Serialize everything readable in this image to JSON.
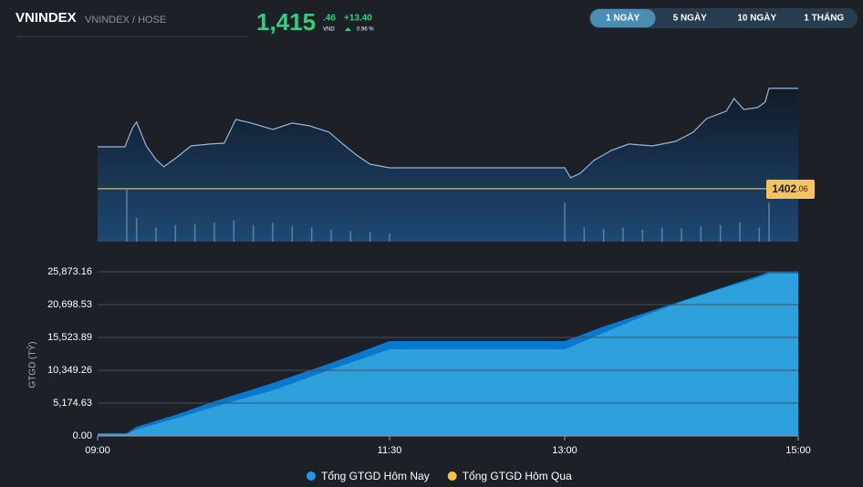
{
  "header": {
    "symbol": "VNINDEX",
    "exchange": "VNINDEX / HOSE",
    "price_int": "1,415",
    "price_dec": ".46",
    "currency": "VND",
    "change": "+13.40",
    "change_pct": "0.96 %"
  },
  "tabs": {
    "items": [
      "1 NGÀY",
      "5 NGÀY",
      "10 NGÀY",
      "1 THÁNG"
    ],
    "active": 0
  },
  "chart_data": [
    {
      "type": "line",
      "xlim": [
        540,
        900
      ],
      "ylim": [
        1395,
        1417.5
      ],
      "y2lim": [
        0,
        50
      ],
      "reference": {
        "value": 1402.06,
        "label_int": "1402",
        "label_dec": ".06",
        "color": "#f5c462"
      },
      "series": [
        {
          "color": "#8fb8dc",
          "x": [
            540,
            554,
            558,
            560,
            565,
            570,
            574,
            581,
            588,
            598,
            605,
            611,
            619,
            630,
            640,
            649,
            659,
            666,
            673,
            680,
            690,
            780,
            783,
            788,
            795,
            804,
            813,
            825,
            837,
            846,
            853,
            863,
            867,
            872,
            879,
            883,
            885,
            900
          ],
          "values": [
            1407.65,
            1407.65,
            1410.21,
            1410.94,
            1407.77,
            1405.95,
            1404.98,
            1406.31,
            1407.77,
            1408.02,
            1408.14,
            1411.3,
            1410.82,
            1409.96,
            1410.82,
            1410.45,
            1409.6,
            1408.02,
            1406.56,
            1405.34,
            1404.85,
            1404.85,
            1403.52,
            1404.12,
            1405.83,
            1407.17,
            1408.02,
            1407.77,
            1408.38,
            1409.6,
            1411.42,
            1412.4,
            1414.1,
            1412.64,
            1412.88,
            1413.61,
            1415.44,
            1415.44
          ]
        },
        {
          "type": "bar",
          "axis": "y2",
          "color": "#5f7fa3",
          "x": [
            555,
            560,
            570,
            580,
            590,
            600,
            610,
            620,
            630,
            640,
            650,
            660,
            670,
            680,
            690,
            780,
            790,
            800,
            810,
            820,
            830,
            840,
            850,
            860,
            870,
            880,
            885
          ],
          "values": [
            45,
            20,
            12,
            14,
            15,
            16,
            18,
            14,
            16,
            13,
            12,
            10,
            9,
            8,
            7,
            33,
            12,
            11,
            12,
            10,
            12,
            11,
            13,
            14,
            16,
            12,
            33
          ]
        }
      ]
    },
    {
      "type": "area",
      "ylabel": "GTGD (TỶ)",
      "xlim": [
        540,
        900
      ],
      "ylim": [
        0,
        27740
      ],
      "grid": true,
      "xticks": [
        {
          "value": 540,
          "label": "09:00"
        },
        {
          "value": 690,
          "label": "11:30"
        },
        {
          "value": 780,
          "label": "13:00"
        },
        {
          "value": 900,
          "label": "15:00"
        }
      ],
      "yticks": [
        {
          "value": 0,
          "label": "0.00"
        },
        {
          "value": 5174.63,
          "label": "5,174.63"
        },
        {
          "value": 10349.26,
          "label": "10,349.26"
        },
        {
          "value": 15523.89,
          "label": "15,523.89"
        },
        {
          "value": 20698.53,
          "label": "20,698.53"
        },
        {
          "value": 25873.16,
          "label": "25,873.16"
        }
      ],
      "series": [
        {
          "name": "Tổng GTGD Hôm Nay",
          "color": "#2196f3",
          "fill": "#0a78cf",
          "x": [
            540,
            555,
            560,
            580,
            600,
            630,
            660,
            690,
            780,
            800,
            820,
            840,
            860,
            880,
            885,
            900
          ],
          "values": [
            431,
            431,
            1437,
            3306,
            5462,
            8337,
            11499,
            14949,
            14949,
            17249,
            19261,
            21274,
            23286,
            25298,
            25873,
            25873
          ]
        },
        {
          "name": "Tổng GTGD Hôm Qua",
          "color": "#f6c343",
          "fill": "#2ea0dc",
          "x": [
            540,
            555,
            560,
            580,
            600,
            630,
            660,
            690,
            780,
            800,
            820,
            840,
            860,
            880,
            885,
            900
          ],
          "values": [
            287,
            287,
            1006,
            2731,
            4600,
            7187,
            10493,
            13655,
            13655,
            16243,
            18830,
            21130,
            23142,
            25011,
            25586,
            25586
          ]
        }
      ]
    }
  ]
}
